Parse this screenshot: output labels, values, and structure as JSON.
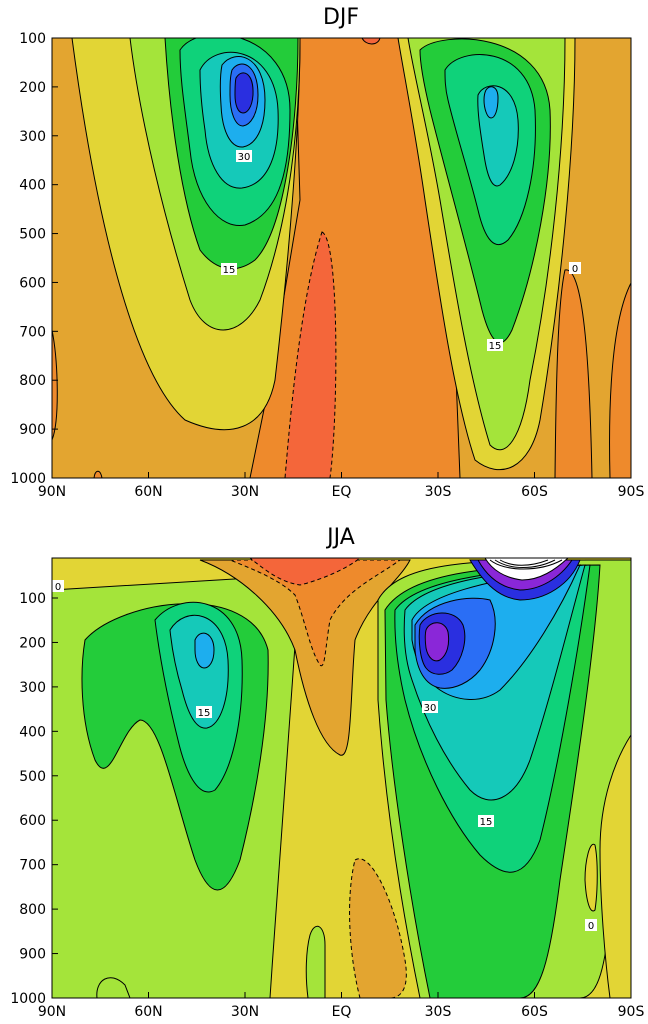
{
  "chart_data": [
    {
      "type": "heatmap",
      "title": "DJF",
      "xlabel": "",
      "ylabel": "",
      "x_ticks": [
        "90N",
        "60N",
        "30N",
        "EQ",
        "30S",
        "60S",
        "90S"
      ],
      "y_ticks": [
        "100",
        "200",
        "300",
        "400",
        "500",
        "600",
        "700",
        "800",
        "900",
        "1000"
      ],
      "xlim": [
        "90N",
        "90S"
      ],
      "ylim": [
        1000,
        100
      ],
      "contour_interval": 5,
      "contour_labels": [
        "30",
        "15",
        "0",
        "15"
      ],
      "jets": [
        {
          "lat": "32N",
          "pressure": 200,
          "max": 40
        },
        {
          "lat": "48S",
          "pressure": 230,
          "max": 30
        }
      ],
      "negative_regions": [
        {
          "lat_range": [
            "15N",
            "3N"
          ],
          "pressure_range": [
            500,
            1000
          ]
        }
      ]
    },
    {
      "type": "heatmap",
      "title": "JJA",
      "xlabel": "",
      "ylabel": "",
      "x_ticks": [
        "90N",
        "60N",
        "30N",
        "EQ",
        "30S",
        "60S",
        "90S"
      ],
      "y_ticks": [
        "100",
        "200",
        "300",
        "400",
        "500",
        "600",
        "700",
        "800",
        "900",
        "1000"
      ],
      "xlim": [
        "90N",
        "90S"
      ],
      "ylim": [
        1000,
        10
      ],
      "contour_interval": 5,
      "contour_labels": [
        "0",
        "15",
        "30",
        "15",
        "0"
      ],
      "jets": [
        {
          "lat": "43N",
          "pressure": 200,
          "max": 20
        },
        {
          "lat": "30S",
          "pressure": 200,
          "max": 45
        }
      ],
      "negative_regions": [
        {
          "lat_range": [
            "35N",
            "EQ"
          ],
          "pressure_range": [
            10,
            450
          ]
        },
        {
          "lat_range": [
            "3S",
            "15S"
          ],
          "pressure_range": [
            650,
            1000
          ]
        }
      ]
    }
  ],
  "colors": {
    "negative_strong": "#f4663a",
    "negative": "#ee8a2c",
    "zero_band": "#e3a530",
    "weak": "#e2d535",
    "light_green": "#a4e43a",
    "green": "#23cc3a",
    "mid_green": "#0fd27a",
    "teal": "#15c9b9",
    "cyan": "#1daeee",
    "blue": "#2a6ef5",
    "indigo": "#2a2fe0",
    "violet": "#8a27d8"
  }
}
